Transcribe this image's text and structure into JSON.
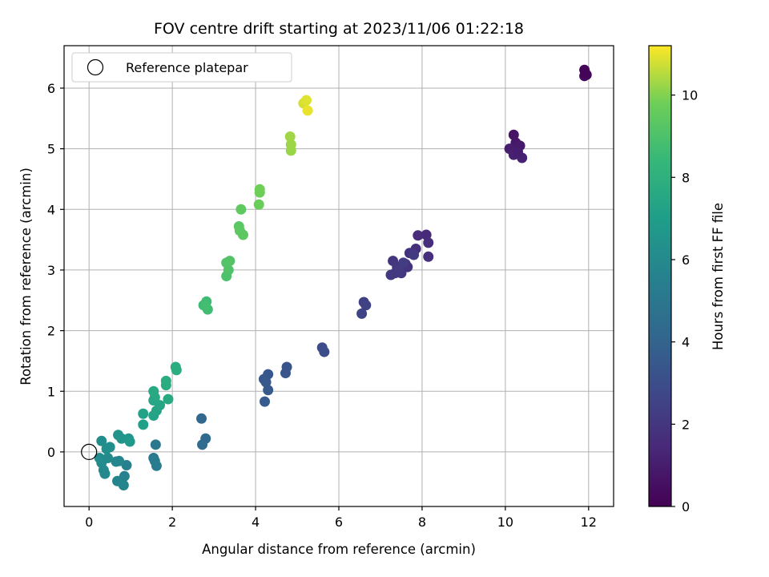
{
  "chart_data": {
    "type": "scatter",
    "title": "FOV centre drift starting at 2023/11/06 01:22:18",
    "xlabel": "Angular distance from reference (arcmin)",
    "ylabel": "Rotation from reference (arcmin)",
    "xlim": [
      -0.6,
      12.6
    ],
    "ylim": [
      -0.9,
      6.7
    ],
    "xticks": [
      "0",
      "2",
      "4",
      "6",
      "8",
      "10",
      "12"
    ],
    "yticks": [
      "0",
      "1",
      "2",
      "3",
      "4",
      "5",
      "6"
    ],
    "grid": true,
    "legend": {
      "location": "upper left",
      "entries": [
        "Reference platepar"
      ]
    },
    "reference_point": {
      "x": 0,
      "y": 0,
      "label": "Reference platepar"
    },
    "colorbar": {
      "label": "Hours from first FF file",
      "colormap": "viridis",
      "range": [
        0,
        11.2
      ],
      "ticks": [
        "0",
        "2",
        "4",
        "6",
        "8",
        "10"
      ]
    },
    "point_color_var": "Hours from first FF file",
    "points": [
      [
        11.9,
        6.3,
        0.1
      ],
      [
        11.95,
        6.22,
        0.2
      ],
      [
        11.9,
        6.2,
        0.3
      ],
      [
        11.92,
        6.25,
        0.15
      ],
      [
        10.2,
        5.23,
        0.7
      ],
      [
        10.25,
        5.1,
        0.8
      ],
      [
        10.35,
        5.05,
        0.9
      ],
      [
        10.1,
        5.0,
        1.0
      ],
      [
        10.2,
        4.9,
        1.1
      ],
      [
        10.4,
        4.85,
        1.2
      ],
      [
        10.3,
        4.95,
        1.05
      ],
      [
        8.1,
        3.58,
        1.5
      ],
      [
        7.9,
        3.57,
        1.6
      ],
      [
        8.15,
        3.45,
        1.65
      ],
      [
        8.15,
        3.22,
        1.7
      ],
      [
        7.85,
        3.35,
        1.75
      ],
      [
        7.7,
        3.28,
        1.8
      ],
      [
        7.6,
        3.1,
        1.85
      ],
      [
        7.65,
        3.05,
        1.9
      ],
      [
        7.3,
        3.15,
        1.95
      ],
      [
        7.4,
        3.05,
        2.0
      ],
      [
        7.5,
        2.95,
        2.05
      ],
      [
        7.35,
        2.95,
        2.1
      ],
      [
        7.25,
        2.92,
        2.12
      ],
      [
        7.45,
        3.0,
        2.15
      ],
      [
        7.8,
        3.25,
        2.2
      ],
      [
        7.55,
        3.12,
        2.25
      ],
      [
        6.6,
        2.47,
        2.4
      ],
      [
        6.65,
        2.42,
        2.5
      ],
      [
        6.55,
        2.28,
        2.6
      ],
      [
        5.6,
        1.72,
        2.9
      ],
      [
        5.65,
        1.65,
        3.0
      ],
      [
        4.75,
        1.4,
        3.3
      ],
      [
        4.72,
        1.3,
        3.35
      ],
      [
        4.3,
        1.28,
        3.4
      ],
      [
        4.2,
        1.2,
        3.45
      ],
      [
        4.25,
        1.15,
        3.5
      ],
      [
        4.3,
        1.02,
        3.55
      ],
      [
        4.22,
        0.83,
        3.6
      ],
      [
        2.7,
        0.55,
        4.2
      ],
      [
        2.8,
        0.22,
        4.3
      ],
      [
        2.72,
        0.12,
        4.4
      ],
      [
        1.6,
        0.12,
        5.0
      ],
      [
        1.55,
        -0.1,
        5.1
      ],
      [
        1.58,
        -0.15,
        5.2
      ],
      [
        1.62,
        -0.23,
        5.3
      ],
      [
        0.9,
        -0.22,
        5.5
      ],
      [
        0.85,
        -0.4,
        5.6
      ],
      [
        0.68,
        -0.48,
        5.7
      ],
      [
        0.83,
        -0.55,
        5.75
      ],
      [
        0.72,
        -0.15,
        5.8
      ],
      [
        0.65,
        -0.16,
        5.85
      ],
      [
        0.35,
        -0.3,
        5.9
      ],
      [
        0.38,
        -0.36,
        5.95
      ],
      [
        0.3,
        -0.18,
        6.0
      ],
      [
        0.45,
        -0.1,
        6.05
      ],
      [
        0.25,
        -0.1,
        6.1
      ],
      [
        0.3,
        0.18,
        6.15
      ],
      [
        0.5,
        0.08,
        6.2
      ],
      [
        0.42,
        0.05,
        6.25
      ],
      [
        0.7,
        0.28,
        6.4
      ],
      [
        0.78,
        0.22,
        6.5
      ],
      [
        0.95,
        0.22,
        6.6
      ],
      [
        0.98,
        0.17,
        6.7
      ],
      [
        1.3,
        0.45,
        7.1
      ],
      [
        1.3,
        0.63,
        7.2
      ],
      [
        1.55,
        0.6,
        7.3
      ],
      [
        1.62,
        0.68,
        7.35
      ],
      [
        1.7,
        0.77,
        7.4
      ],
      [
        1.55,
        0.85,
        7.45
      ],
      [
        1.58,
        0.9,
        7.5
      ],
      [
        1.55,
        1.0,
        7.55
      ],
      [
        1.9,
        0.87,
        7.6
      ],
      [
        1.85,
        1.1,
        7.7
      ],
      [
        1.85,
        1.17,
        7.75
      ],
      [
        2.08,
        1.4,
        7.8
      ],
      [
        2.1,
        1.35,
        7.85
      ],
      [
        2.75,
        2.42,
        8.6
      ],
      [
        2.82,
        2.48,
        8.65
      ],
      [
        2.85,
        2.35,
        8.7
      ],
      [
        2.8,
        2.4,
        8.75
      ],
      [
        3.3,
        2.9,
        9.0
      ],
      [
        3.35,
        3.0,
        9.05
      ],
      [
        3.3,
        3.12,
        9.1
      ],
      [
        3.38,
        3.15,
        9.15
      ],
      [
        3.6,
        3.72,
        9.3
      ],
      [
        3.62,
        3.65,
        9.35
      ],
      [
        3.7,
        3.58,
        9.4
      ],
      [
        3.65,
        4.0,
        9.45
      ],
      [
        4.08,
        4.08,
        9.7
      ],
      [
        4.1,
        4.28,
        9.75
      ],
      [
        4.1,
        4.33,
        9.8
      ],
      [
        4.85,
        4.97,
        10.2
      ],
      [
        4.85,
        5.07,
        10.25
      ],
      [
        4.83,
        5.2,
        10.3
      ],
      [
        5.15,
        5.75,
        10.8
      ],
      [
        5.22,
        5.8,
        10.9
      ],
      [
        5.25,
        5.63,
        11.0
      ]
    ]
  }
}
